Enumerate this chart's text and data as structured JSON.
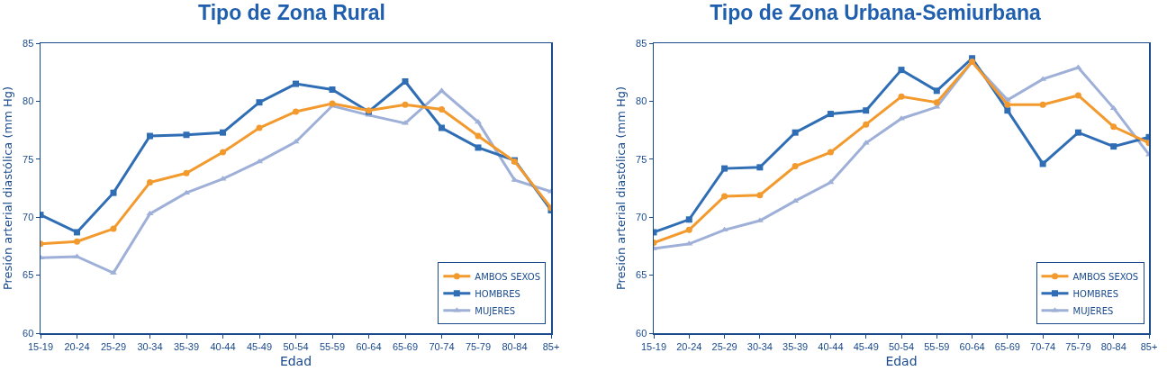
{
  "chart_data": [
    {
      "type": "line",
      "title": "Tipo de Zona Rural",
      "xlabel": "Edad",
      "ylabel": "Presión arterial diastólica (mm Hg)",
      "categories": [
        "15-19",
        "20-24",
        "25-29",
        "30-34",
        "35-39",
        "40-44",
        "45-49",
        "50-54",
        "55-59",
        "60-64",
        "65-69",
        "70-74",
        "75-79",
        "80-84",
        "85+"
      ],
      "ylim": [
        60,
        85
      ],
      "yticks": [
        60,
        65,
        70,
        75,
        80,
        85
      ],
      "grid": false,
      "legend": "bottom right",
      "line_style": "solid",
      "series": [
        {
          "name": "AMBOS SEXOS",
          "color": "#f39a2e",
          "marker": "circle",
          "values": [
            67.7,
            67.9,
            69.0,
            73.0,
            73.8,
            75.6,
            77.7,
            79.1,
            79.8,
            79.2,
            79.7,
            79.3,
            77.0,
            74.8,
            70.8
          ]
        },
        {
          "name": "HOMBRES",
          "color": "#2f6eb5",
          "marker": "square",
          "values": [
            70.2,
            68.7,
            72.1,
            77.0,
            77.1,
            77.3,
            79.9,
            81.5,
            81.0,
            79.1,
            81.7,
            77.7,
            76.0,
            74.9,
            70.6
          ]
        },
        {
          "name": "MUJERES",
          "color": "#9fb0d8",
          "marker": "triangle",
          "values": [
            66.5,
            66.6,
            65.2,
            70.3,
            72.1,
            73.3,
            74.8,
            76.5,
            79.6,
            78.8,
            78.1,
            80.9,
            78.2,
            73.2,
            72.2
          ]
        }
      ]
    },
    {
      "type": "line",
      "title": "Tipo de Zona Urbana-Semiurbana",
      "xlabel": "Edad",
      "ylabel": "Presión arterial diastólica (mm Hg)",
      "categories": [
        "15-19",
        "20-24",
        "25-29",
        "30-34",
        "35-39",
        "40-44",
        "45-49",
        "50-54",
        "55-59",
        "60-64",
        "65-69",
        "70-74",
        "75-79",
        "80-84",
        "85+"
      ],
      "ylim": [
        60,
        85
      ],
      "yticks": [
        60,
        65,
        70,
        75,
        80,
        85
      ],
      "grid": false,
      "legend": "bottom right",
      "line_style": "solid",
      "series": [
        {
          "name": "AMBOS SEXOS",
          "color": "#f39a2e",
          "marker": "circle",
          "values": [
            67.8,
            68.9,
            71.8,
            71.9,
            74.4,
            75.6,
            78.0,
            80.4,
            79.9,
            83.4,
            79.7,
            79.7,
            80.5,
            77.8,
            76.4
          ]
        },
        {
          "name": "HOMBRES",
          "color": "#2f6eb5",
          "marker": "square",
          "values": [
            68.7,
            69.8,
            74.2,
            74.3,
            77.3,
            78.9,
            79.2,
            82.7,
            80.9,
            83.7,
            79.2,
            74.6,
            77.3,
            76.1,
            76.9
          ]
        },
        {
          "name": "MUJERES",
          "color": "#9fb0d8",
          "marker": "triangle",
          "values": [
            67.3,
            67.7,
            68.9,
            69.7,
            71.4,
            73.0,
            76.4,
            78.5,
            79.5,
            83.4,
            80.1,
            81.9,
            82.9,
            79.4,
            75.4
          ]
        }
      ]
    }
  ]
}
